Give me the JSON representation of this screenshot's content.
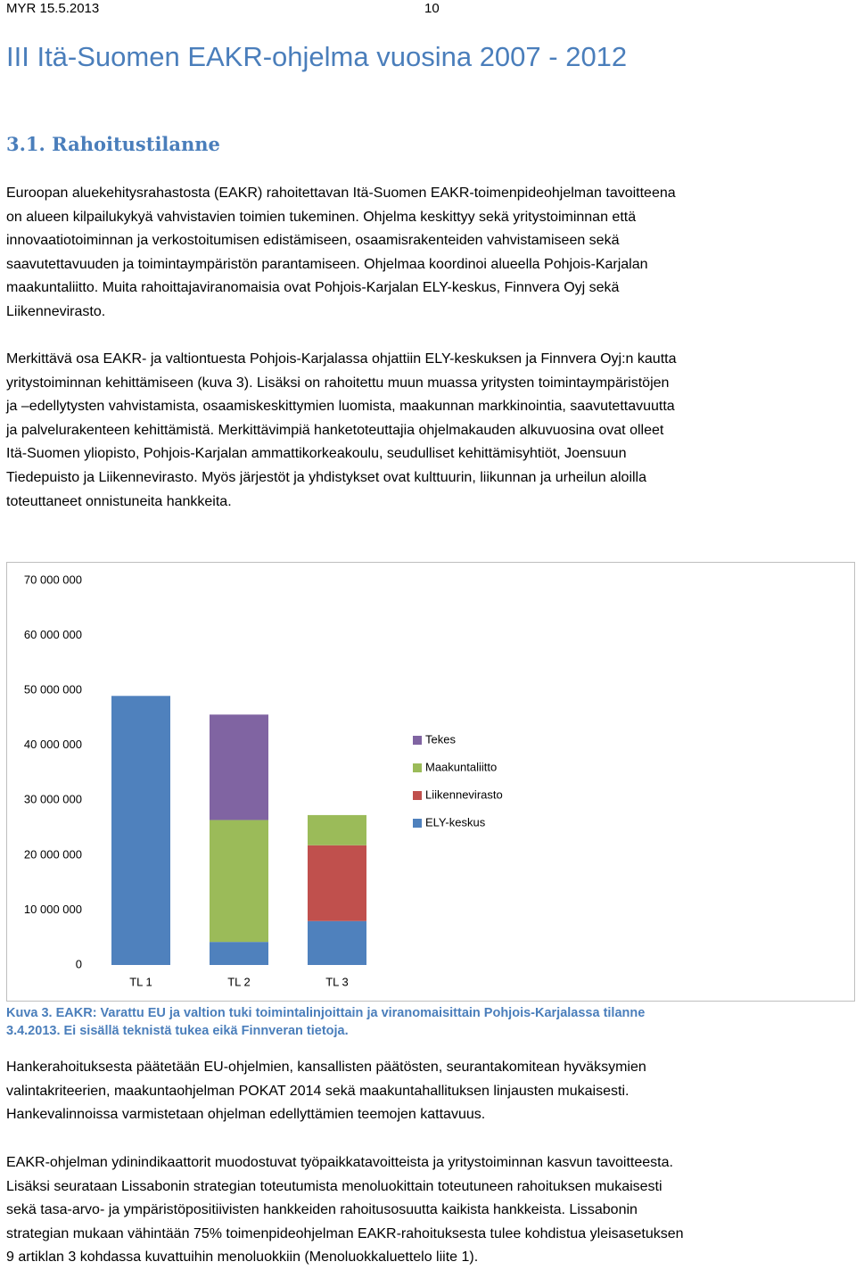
{
  "header": {
    "left": "MYR 15.5.2013",
    "page": "10"
  },
  "title": "III Itä-Suomen EAKR-ohjelma vuosina 2007 - 2012",
  "heading": "3.1. Rahoitustilanne",
  "paragraphs_before": [
    [
      "Euroopan aluekehitysrahastosta (EAKR) rahoitettavan Itä-Suomen EAKR-toimenpideohjelman tavoitteena",
      "on alueen kilpailukykyä vahvistavien toimien tukeminen. Ohjelma keskittyy sekä yritystoiminnan että",
      "innovaatiotoiminnan ja verkostoitumisen edistämiseen, osaamisrakenteiden vahvistamiseen sekä",
      "saavutettavuuden ja toimintaympäristön parantamiseen. Ohjelmaa koordinoi alueella Pohjois-Karjalan",
      "maakuntaliitto. Muita rahoittajaviranomaisia ovat Pohjois-Karjalan ELY-keskus, Finnvera Oyj sekä",
      "Liikennevirasto."
    ],
    [
      "Merkittävä osa EAKR- ja valtiontuesta Pohjois-Karjalassa ohjattiin ELY-keskuksen ja Finnvera Oyj:n kautta",
      "yritystoiminnan kehittämiseen (kuva 3). Lisäksi on rahoitettu muun muassa yritysten toimintaympäristöjen",
      "ja –edellytysten vahvistamista, osaamiskeskittymien luomista, maakunnan markkinointia, saavutettavuutta",
      "ja palvelurakenteen kehittämistä. Merkittävimpiä hanketoteuttajia ohjelmakauden alkuvuosina ovat olleet",
      "Itä-Suomen yliopisto, Pohjois-Karjalan ammattikorkeakoulu, seudulliset kehittämisyhtiöt, Joensuun",
      "Tiedepuisto ja Liikennevirasto. Myös järjestöt ja yhdistykset ovat kulttuurin, liikunnan ja urheilun aloilla",
      "toteuttaneet onnistuneita hankkeita."
    ]
  ],
  "chart_data": {
    "type": "stacked_bar",
    "categories": [
      "TL 1",
      "TL 2",
      "TL 3"
    ],
    "series": [
      {
        "name": "ELY-keskus",
        "color": "#4f81bd",
        "values": [
          49000000,
          4200000,
          8000000
        ]
      },
      {
        "name": "Liikennevirasto",
        "color": "#c0504d",
        "values": [
          0,
          0,
          13800000
        ]
      },
      {
        "name": "Maakuntaliitto",
        "color": "#9bbb59",
        "values": [
          0,
          22200000,
          5500000
        ]
      },
      {
        "name": "Tekes",
        "color": "#8064a2",
        "values": [
          0,
          19200000,
          0
        ]
      }
    ],
    "ylim": [
      0,
      70000000
    ],
    "yticks": [
      0,
      {
        "value": 10000000,
        "label": "10 000 000"
      },
      {
        "value": 20000000,
        "label": "20 000 000"
      },
      {
        "value": 30000000,
        "label": "30 000 000"
      },
      {
        "value": 40000000,
        "label": "40 000 000"
      },
      {
        "value": 50000000,
        "label": "50 000 000"
      },
      {
        "value": 60000000,
        "label": "60 000 000"
      },
      {
        "value": 70000000,
        "label": "70 000 000"
      }
    ],
    "grid": false,
    "legend": "right"
  },
  "caption": [
    "Kuva 3. EAKR: Varattu EU ja valtion tuki toimintalinjoittain ja viranomaisittain Pohjois-Karjalassa tilanne",
    "3.4.2013. Ei sisällä teknistä tukea eikä Finnveran tietoja."
  ],
  "paragraphs_after": [
    [
      "Hankerahoituksesta päätetään EU-ohjelmien, kansallisten päätösten, seurantakomitean hyväksymien",
      "valintakriteerien, maakuntaohjelman POKAT 2014 sekä maakuntahallituksen linjausten mukaisesti.",
      "Hankevalinnoissa varmistetaan ohjelman edellyttämien teemojen kattavuus."
    ],
    [
      "EAKR-ohjelman ydinindikaattorit muodostuvat työpaikkatavoitteista ja yritystoiminnan kasvun tavoitteesta.",
      "Lisäksi seurataan Lissabonin strategian toteutumista menoluokittain toteutuneen rahoituksen mukaisesti",
      "sekä tasa-arvo- ja ympäristöpositiivisten hankkeiden rahoitusosuutta kaikista hankkeista. Lissabonin",
      "strategian mukaan vähintään 75% toimenpideohjelman EAKR-rahoituksesta tulee kohdistua yleisasetuksen",
      "9 artiklan 3 kohdassa kuvattuihin menoluokkiin (Menoluokkaluettelo liite 1)."
    ]
  ]
}
